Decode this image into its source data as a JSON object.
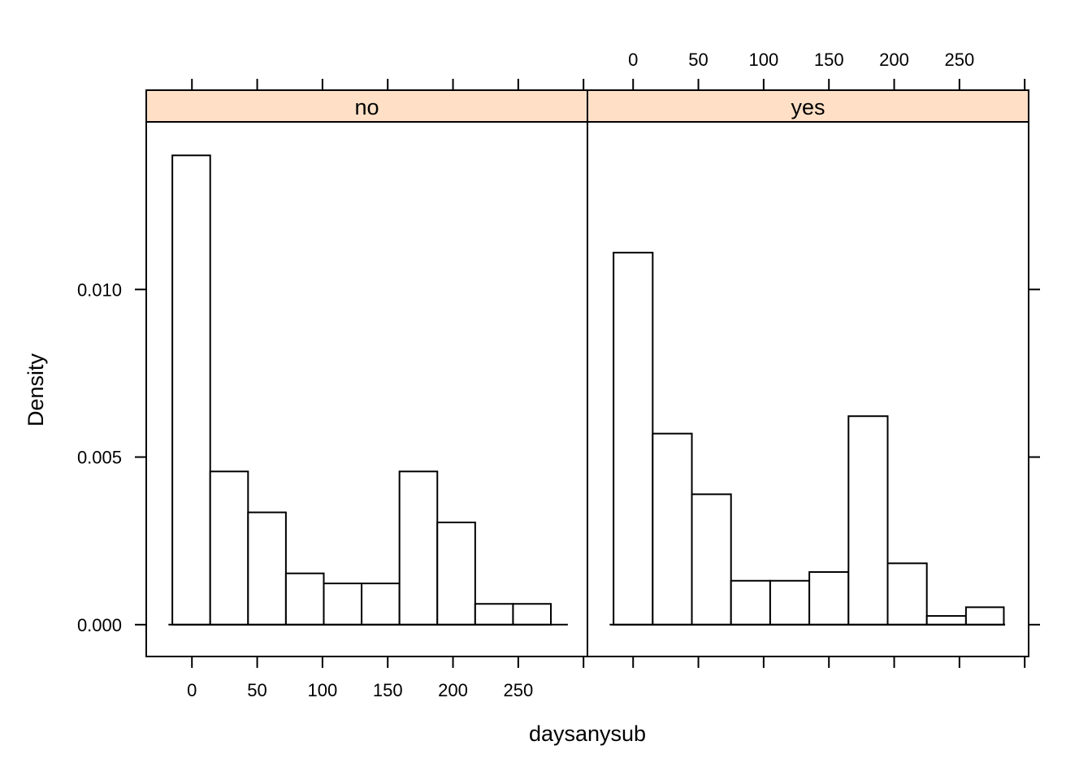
{
  "chart_data": {
    "type": "bar",
    "subtype": "histogram",
    "layout": "two panels side by side with shared y axis",
    "xlabel": "daysanysub",
    "ylabel": "Density",
    "xlim": [
      -35,
      303
    ],
    "ylim": [
      -0.00095,
      0.015
    ],
    "x_ticks": [
      0,
      50,
      100,
      150,
      200,
      250
    ],
    "y_ticks": [
      0.0,
      0.005,
      0.01
    ],
    "y_tick_labels": [
      "0.000",
      "0.005",
      "0.010"
    ],
    "strip_color": "#ffe0c6",
    "grid": false,
    "panels": [
      {
        "label": "no",
        "baseline_range": [
          -18,
          288
        ],
        "bins": [
          {
            "x0": -15,
            "x1": 14,
            "density": 0.014
          },
          {
            "x0": 14,
            "x1": 43,
            "density": 0.00457
          },
          {
            "x0": 43,
            "x1": 72,
            "density": 0.00335
          },
          {
            "x0": 72,
            "x1": 101,
            "density": 0.00153
          },
          {
            "x0": 101,
            "x1": 130,
            "density": 0.00123
          },
          {
            "x0": 130,
            "x1": 159,
            "density": 0.00123
          },
          {
            "x0": 159,
            "x1": 188,
            "density": 0.00457
          },
          {
            "x0": 188,
            "x1": 217,
            "density": 0.00305
          },
          {
            "x0": 217,
            "x1": 246,
            "density": 0.00062
          },
          {
            "x0": 246,
            "x1": 275,
            "density": 0.00062
          }
        ]
      },
      {
        "label": "yes",
        "baseline_range": [
          -18,
          285
        ],
        "bins": [
          {
            "x0": -15,
            "x1": 15,
            "density": 0.0111
          },
          {
            "x0": 15,
            "x1": 45,
            "density": 0.0057
          },
          {
            "x0": 45,
            "x1": 75,
            "density": 0.00389
          },
          {
            "x0": 75,
            "x1": 105,
            "density": 0.00131
          },
          {
            "x0": 105,
            "x1": 135,
            "density": 0.00131
          },
          {
            "x0": 135,
            "x1": 165,
            "density": 0.00157
          },
          {
            "x0": 165,
            "x1": 195,
            "density": 0.00622
          },
          {
            "x0": 195,
            "x1": 225,
            "density": 0.00183
          },
          {
            "x0": 225,
            "x1": 255,
            "density": 0.00026
          },
          {
            "x0": 255,
            "x1": 284,
            "density": 0.00052
          }
        ]
      }
    ]
  }
}
